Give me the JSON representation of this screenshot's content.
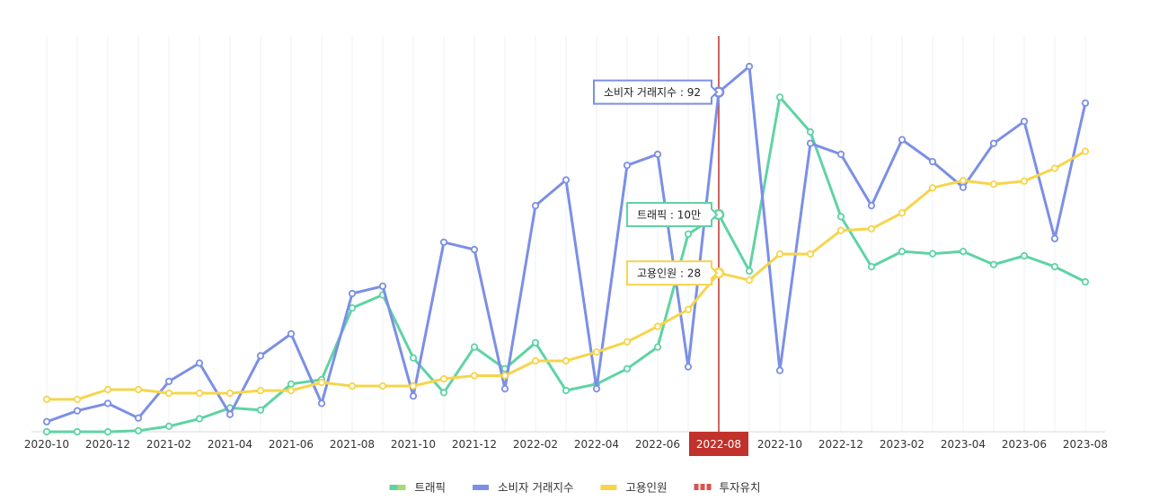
{
  "chart_data": {
    "type": "line",
    "categories": [
      "2020-10",
      "2020-11",
      "2020-12",
      "2021-01",
      "2021-02",
      "2021-03",
      "2021-04",
      "2021-05",
      "2021-06",
      "2021-07",
      "2021-08",
      "2021-09",
      "2021-10",
      "2021-11",
      "2021-12",
      "2022-01",
      "2022-02",
      "2022-03",
      "2022-04",
      "2022-05",
      "2022-06",
      "2022-07",
      "2022-08",
      "2022-09",
      "2022-10",
      "2022-11",
      "2022-12",
      "2023-01",
      "2023-02",
      "2023-03",
      "2023-04",
      "2023-05",
      "2023-06",
      "2023-07",
      "2023-08"
    ],
    "x_tick_labels": [
      "2020-10",
      "2020-12",
      "2021-02",
      "2021-04",
      "2021-06",
      "2021-08",
      "2021-10",
      "2021-12",
      "2022-02",
      "2022-04",
      "2022-06",
      "2022-08",
      "2022-10",
      "2022-12",
      "2023-02",
      "2023-04",
      "2023-06",
      "2023-08"
    ],
    "series": [
      {
        "name": "트래픽",
        "color": "#5fd3a4",
        "values": [
          0.0,
          0.0,
          0.0,
          0.05,
          0.25,
          0.6,
          1.1,
          1.0,
          2.2,
          2.4,
          5.7,
          6.3,
          3.4,
          1.8,
          3.9,
          2.9,
          4.1,
          1.9,
          2.2,
          2.9,
          3.9,
          9.1,
          10.0,
          7.4,
          15.4,
          13.8,
          9.9,
          7.6,
          8.3,
          8.2,
          8.3,
          7.7,
          8.1,
          7.6,
          6.9
        ]
      },
      {
        "name": "소비자 거래지수",
        "color": "#7b8fe6",
        "values": [
          2,
          5,
          7,
          3,
          13,
          18,
          4,
          20,
          26,
          7,
          37,
          39,
          9,
          51,
          49,
          11,
          61,
          68,
          11,
          72,
          75,
          17,
          92,
          99,
          16,
          78,
          75,
          61,
          79,
          73,
          66,
          78,
          84,
          52,
          89
        ]
      },
      {
        "name": "고용인원",
        "color": "#f6d54b",
        "values": [
          3.4,
          3.4,
          5.3,
          5.3,
          4.6,
          4.6,
          4.6,
          5.1,
          5.1,
          6.7,
          6.0,
          6.0,
          6.0,
          7.4,
          8.0,
          8.0,
          10.9,
          10.9,
          12.6,
          14.6,
          17.6,
          20.9,
          28.0,
          26.6,
          31.7,
          31.7,
          36.3,
          36.6,
          39.7,
          44.6,
          46.0,
          45.3,
          45.9,
          48.4,
          51.7
        ]
      }
    ],
    "annotation": {
      "name": "투자유치",
      "x": "2022-08",
      "color": "#c0322b"
    },
    "tooltips": [
      {
        "series": "소비자 거래지수",
        "text": "소비자 거래지수 : 92"
      },
      {
        "series": "트래픽",
        "text": "트래픽 : 10만"
      },
      {
        "series": "고용인원",
        "text": "고용인원 : 28"
      }
    ],
    "highlighted_category": "2022-08",
    "legend": {
      "placement": "bottom-center",
      "items": [
        {
          "label": "트래픽",
          "colors": [
            "#5fd3a4",
            "#a6dc6e"
          ],
          "style": "solid"
        },
        {
          "label": "소비자 거래지수",
          "colors": [
            "#7b8fe6"
          ],
          "style": "solid"
        },
        {
          "label": "고용인원",
          "colors": [
            "#f6d54b"
          ],
          "style": "solid"
        },
        {
          "label": "투자유치",
          "colors": [
            "#d9534f"
          ],
          "style": "dashed"
        }
      ]
    },
    "grid": {
      "vertical": true,
      "horizontal": false
    }
  }
}
